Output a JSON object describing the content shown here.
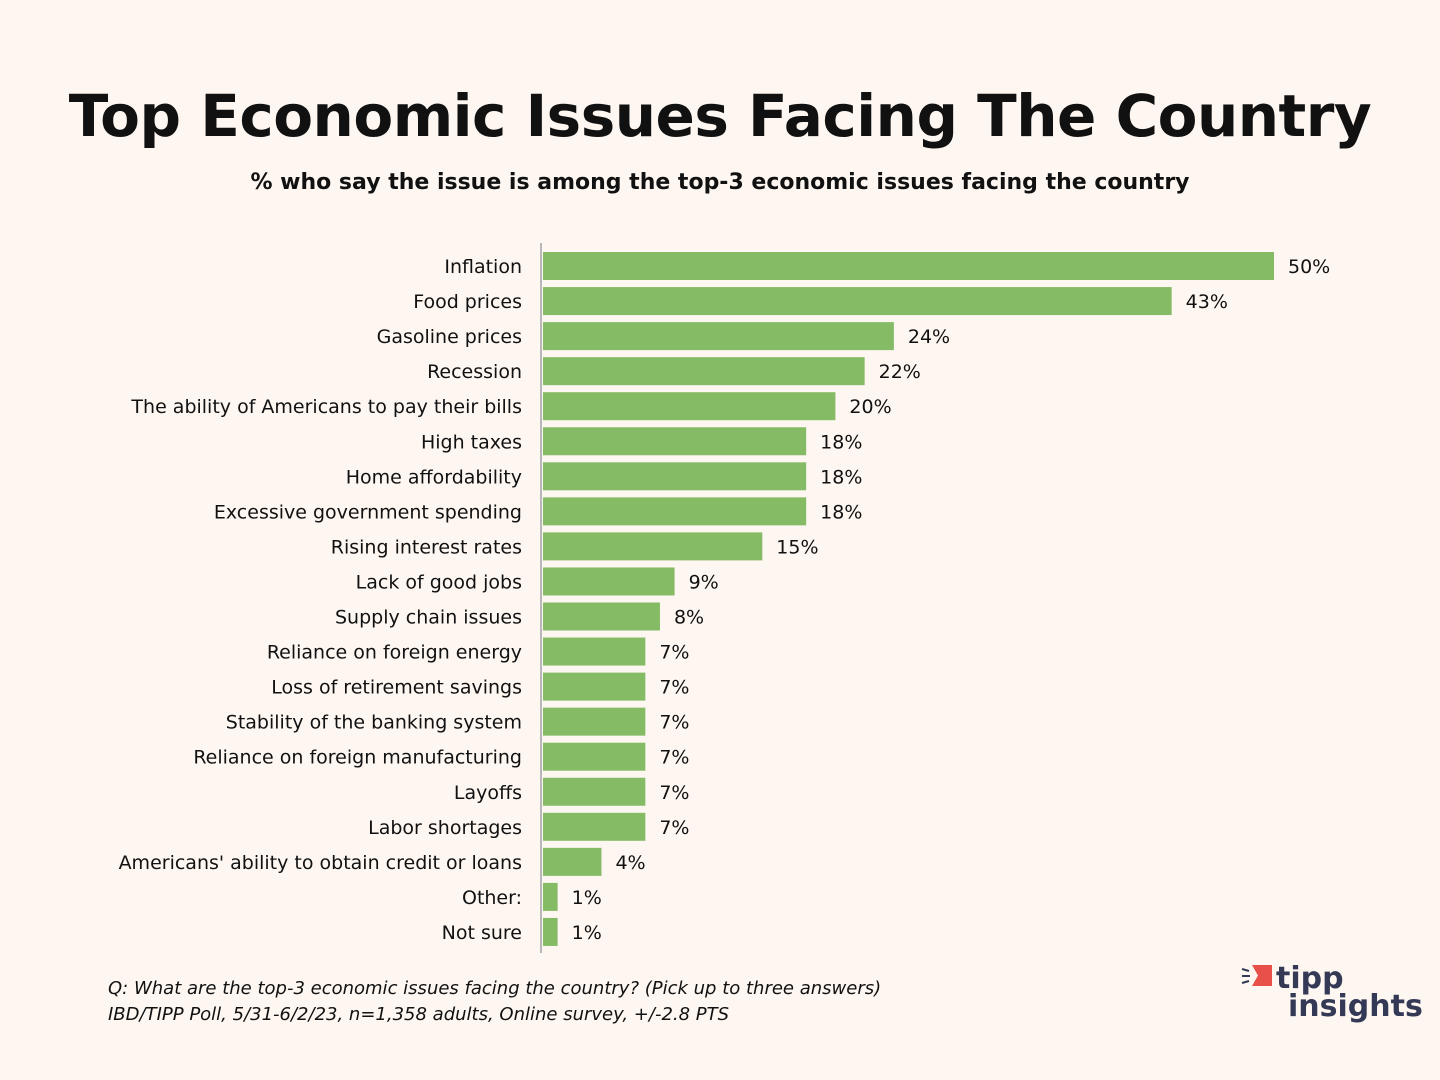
{
  "title": "Top Economic Issues Facing The Country",
  "subtitle": "% who say the issue is among the top-3 economic issues facing the country",
  "footer": {
    "question": "Q:  What are the top-3 economic issues facing the country? (Pick up to three answers)",
    "source": "IBD/TIPP Poll, 5/31-6/2/23, n=1,358 adults, Online survey, +/-2.8 PTS"
  },
  "logo": {
    "line1": "tipp",
    "line2": "insights"
  },
  "colors": {
    "bar": "#86bb65",
    "axis": "#b8b8b8",
    "logo_accent": "#e8514a",
    "logo_text": "#343a55"
  },
  "chart_data": {
    "type": "bar",
    "orientation": "horizontal",
    "title": "Top Economic Issues Facing The Country",
    "xlabel": "",
    "ylabel": "",
    "xlim": [
      0,
      50
    ],
    "grid": false,
    "value_suffix": "%",
    "categories": [
      "Inflation",
      "Food prices",
      "Gasoline prices",
      "Recession",
      "The ability of Americans to pay their bills",
      "High taxes",
      "Home affordability",
      "Excessive government spending",
      "Rising interest rates",
      "Lack of good jobs",
      "Supply chain issues",
      "Reliance on foreign energy",
      "Loss of retirement savings",
      "Stability of the banking system",
      "Reliance on foreign manufacturing",
      "Layoffs",
      "Labor shortages",
      "Americans' ability to obtain credit or loans",
      "Other:",
      "Not sure"
    ],
    "values": [
      50,
      43,
      24,
      22,
      20,
      18,
      18,
      18,
      15,
      9,
      8,
      7,
      7,
      7,
      7,
      7,
      7,
      4,
      1,
      1
    ]
  }
}
